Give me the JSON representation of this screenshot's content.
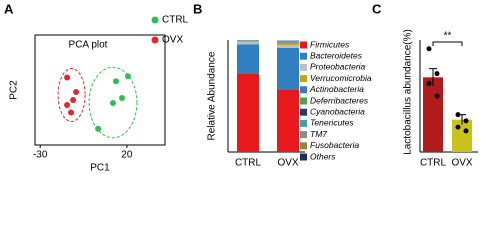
{
  "chart_data": [
    {
      "type": "scatter",
      "panel": "A",
      "title": "PCA plot",
      "xlabel": "PC1",
      "ylabel": "PC2",
      "xlim": [
        -33,
        42
      ],
      "ylim": [
        -22,
        22
      ],
      "xticks": [
        -30,
        20
      ],
      "legend": "upper right",
      "series": [
        {
          "name": "CTRL",
          "color": "#2ebf4f",
          "x": [
            13.7,
            17.2,
            12,
            20.6,
            3.4
          ],
          "y": [
            3.5,
            -3.2,
            -5.2,
            5.5,
            -15.5
          ]
        },
        {
          "name": "OVX",
          "color": "#e3262b",
          "x": [
            -14.5,
            -9.3,
            -11,
            -12.2,
            -14.5
          ],
          "y": [
            5,
            -0.8,
            -4,
            -9,
            -6
          ]
        }
      ]
    },
    {
      "type": "stacked_bar",
      "panel": "B",
      "ylabel": "Relative Abundance",
      "categories": [
        "CTRL",
        "OVX"
      ],
      "ylim": [
        0,
        1
      ],
      "series": [
        {
          "name": "Firmicutes",
          "color": "#e8191c",
          "values": [
            0.7,
            0.56
          ]
        },
        {
          "name": "Bacteroidetes",
          "color": "#2f7fc1",
          "values": [
            0.26,
            0.37
          ]
        },
        {
          "name": "Proteobacteria",
          "color": "#b7bfc9",
          "values": [
            0.025,
            0.025
          ]
        },
        {
          "name": "Verrucomicrobia",
          "color": "#c9a21a",
          "values": [
            0.003,
            0.02
          ]
        },
        {
          "name": "Actinobacteria",
          "color": "#3a78c4",
          "values": [
            0.004,
            0.006
          ]
        },
        {
          "name": "Deferribacteres",
          "color": "#4aa24a",
          "values": [
            0.002,
            0.003
          ]
        },
        {
          "name": "Cyanobacteria",
          "color": "#2a3a6a",
          "values": [
            0.001,
            0.002
          ]
        },
        {
          "name": "Tenericutes",
          "color": "#3aa3a3",
          "values": [
            0.002,
            0.002
          ]
        },
        {
          "name": "TM7",
          "color": "#8a8a8a",
          "values": [
            0.001,
            0.001
          ]
        },
        {
          "name": "Fusobacteria",
          "color": "#8a8a3a",
          "values": [
            0.001,
            0.001
          ]
        },
        {
          "name": "Others",
          "color": "#1e2f5a",
          "values": [
            0.001,
            0.004
          ]
        }
      ]
    },
    {
      "type": "bar",
      "panel": "C",
      "ylabel": "Lactobacillus abundance(%)",
      "categories": [
        "CTRL",
        "OVX"
      ],
      "values": [
        0.6,
        0.26
      ],
      "errors": [
        0.07,
        0.04
      ],
      "colors": [
        "#b01c1c",
        "#c9c21a"
      ],
      "points": [
        [
          0.83,
          0.63,
          0.55,
          0.45
        ],
        [
          0.3,
          0.25,
          0.2,
          0.17
        ]
      ],
      "ylim": [
        0,
        0.9
      ],
      "annotation": "**"
    }
  ]
}
